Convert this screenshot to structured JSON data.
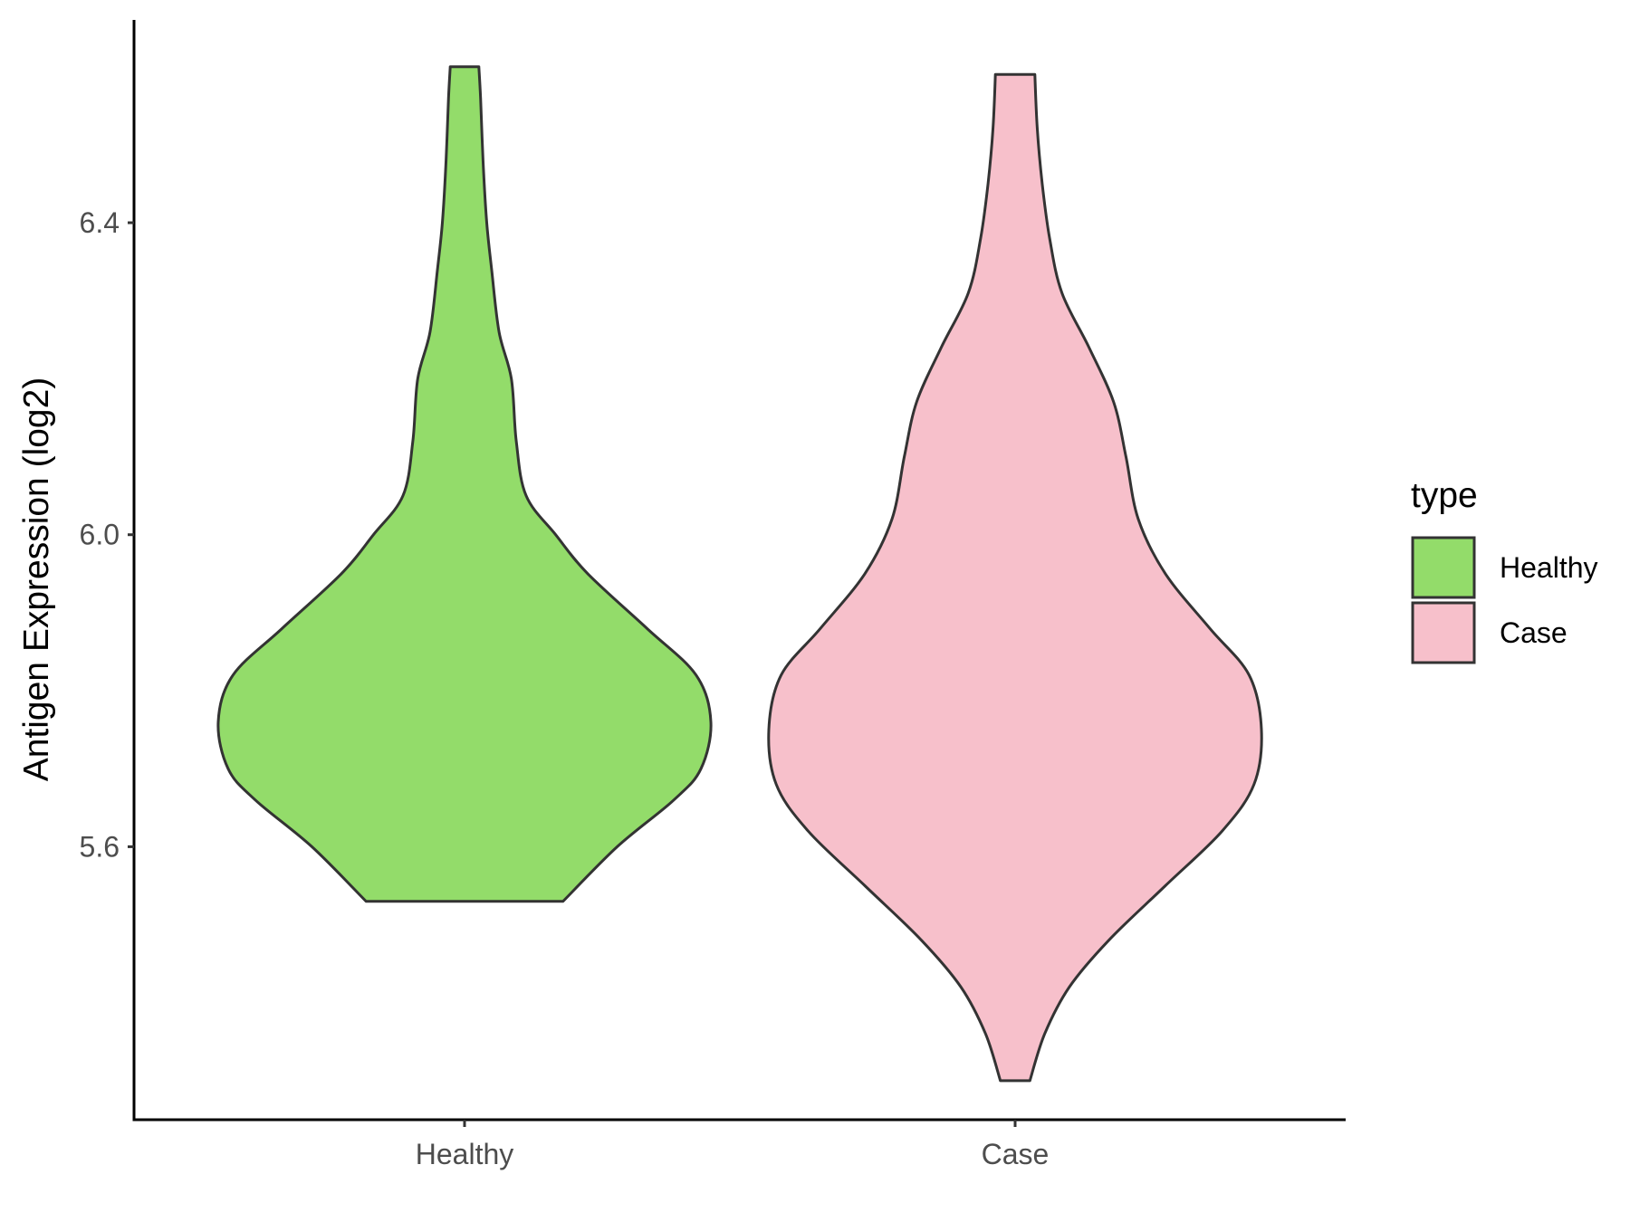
{
  "chart_data": {
    "type": "violin",
    "title": "",
    "xlabel": "",
    "ylabel": "Antigen Expression (log2)",
    "categories": [
      "Healthy",
      "Case"
    ],
    "ylim": [
      5.25,
      6.66
    ],
    "yticks": [
      5.6,
      6.0,
      6.4
    ],
    "ytick_labels": [
      "5.6",
      "6.0",
      "6.4"
    ],
    "grid": false,
    "legend": {
      "title": "type",
      "position": "right",
      "entries": [
        {
          "label": "Healthy",
          "color": "#93DC6A"
        },
        {
          "label": "Case",
          "color": "#F7C0CB"
        }
      ]
    },
    "series": [
      {
        "category": "Healthy",
        "color": "#93DC6A",
        "min": 5.53,
        "max": 6.6,
        "profile": [
          [
            5.53,
            0.4
          ],
          [
            5.6,
            0.62
          ],
          [
            5.66,
            0.85
          ],
          [
            5.7,
            0.96
          ],
          [
            5.76,
            1.0
          ],
          [
            5.82,
            0.94
          ],
          [
            5.88,
            0.74
          ],
          [
            5.95,
            0.5
          ],
          [
            6.0,
            0.37
          ],
          [
            6.05,
            0.25
          ],
          [
            6.12,
            0.21
          ],
          [
            6.2,
            0.19
          ],
          [
            6.26,
            0.14
          ],
          [
            6.34,
            0.11
          ],
          [
            6.4,
            0.09
          ],
          [
            6.48,
            0.075
          ],
          [
            6.56,
            0.065
          ],
          [
            6.6,
            0.058
          ]
        ]
      },
      {
        "category": "Case",
        "color": "#F7C0CB",
        "min": 5.3,
        "max": 6.59,
        "profile": [
          [
            5.3,
            0.06
          ],
          [
            5.36,
            0.12
          ],
          [
            5.42,
            0.22
          ],
          [
            5.48,
            0.38
          ],
          [
            5.55,
            0.61
          ],
          [
            5.62,
            0.84
          ],
          [
            5.68,
            0.97
          ],
          [
            5.75,
            1.0
          ],
          [
            5.82,
            0.95
          ],
          [
            5.88,
            0.79
          ],
          [
            5.95,
            0.61
          ],
          [
            6.02,
            0.5
          ],
          [
            6.1,
            0.45
          ],
          [
            6.17,
            0.4
          ],
          [
            6.24,
            0.3
          ],
          [
            6.31,
            0.19
          ],
          [
            6.38,
            0.14
          ],
          [
            6.45,
            0.11
          ],
          [
            6.52,
            0.09
          ],
          [
            6.59,
            0.08
          ]
        ]
      }
    ]
  }
}
